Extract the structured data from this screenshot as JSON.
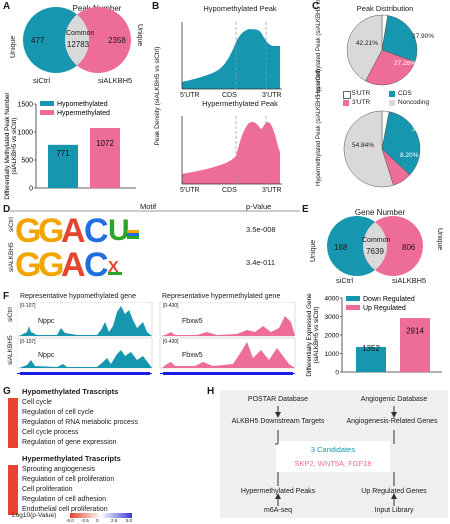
{
  "colors": {
    "teal": "#1796b0",
    "pink": "#ee6d97",
    "grey": "#d9d9d9",
    "red": "#e5452f"
  },
  "panel_labels": {
    "a": "A",
    "b": "B",
    "c": "C",
    "d": "D",
    "e": "E",
    "f": "F",
    "g": "G",
    "h": "H"
  },
  "panel_a": {
    "title": "Peak Number",
    "left_side": "Unique",
    "right_side": "Unique",
    "left_value": "477",
    "common_label": "Common",
    "common_value": "12783",
    "right_value": "2358",
    "left_group": "siCtrl",
    "right_group": "siALKBH5"
  },
  "panel_b": {
    "title_top": "Hypomethylated Peak",
    "title_bottom": "Hypermethylated Peak",
    "ylabel": "Peak Density (siALKBH5 vs siCtrl)",
    "x_ticks": [
      "5'UTR",
      "CDS",
      "3'UTR"
    ]
  },
  "panel_c": {
    "title": "Peak Distribution",
    "ylabel_top": "Hypomethylated Peak (siALKBH5 vs siCtrl)",
    "ylabel_bottom": "Hypermethylated Peak (siALKBH5 vs siCtrl)",
    "legend": [
      "5'UTR",
      "CDS",
      "3'UTR",
      "Noncoding"
    ],
    "top_labels": {
      "cds": "27.90%",
      "utr3": "27.26%",
      "nonc": "42.21%"
    },
    "bottom_labels": {
      "cds": "33.96%",
      "utr3": "8.20%",
      "nonc": "54.84%"
    }
  },
  "panel_d": {
    "col_motif": "Motif",
    "col_p": "p-Value",
    "rows": [
      {
        "name": "siCtrl",
        "p": "3.5e-008"
      },
      {
        "name": "siALKBH5",
        "p": "3.4e-011"
      }
    ]
  },
  "panel_e": {
    "title": "Gene Number",
    "left_side": "Unique",
    "right_side": "Unique",
    "left_value": "168",
    "common_label": "Common",
    "common_value": "7639",
    "right_value": "806",
    "left_group": "siCtrl",
    "right_group": "siALKBH5"
  },
  "panel_f": {
    "hypo_title": "Representative hypomethylated gene",
    "hyper_title": "Representative hypermethylated gene",
    "row_ctrl": "siCtrl",
    "row_kd": "siALKBH5",
    "gene_left": "Nppc",
    "gene_right": "Fbxw5",
    "scale_left": "[0-107]",
    "scale_right": "[0-430]"
  },
  "panel_g": {
    "hypo_heading": "Hypomethylated Trascripts",
    "hypo_terms": [
      "Cell cycle",
      "Regulation of cell cycle",
      "Regulation of RNA metabolic process",
      "Cell cycle process",
      "Regulation of gene expression"
    ],
    "hyper_heading": "Hypermethylated Trascripts",
    "hyper_terms": [
      "Sprouting angiogenesis",
      "Regulation of cell proliferation",
      "Cell proliferation",
      "Regulation of cell adhesion",
      "Endothelial cell proliferation"
    ],
    "scale_label": "Log10(p-Value)",
    "scale_ticks": [
      "-5.0",
      "-2.5",
      "0",
      "2.5",
      "5.0"
    ]
  },
  "panel_h": {
    "box1_a": "POSTAR Database",
    "box1_b": "ALKBH5 Downstream Targets",
    "box2_a": "Angiogenic Database",
    "box2_b": "Angiogenesis-Related Genes",
    "center_a": "3 Candidates",
    "center_b": "SKP2, WNT5A, FGF18",
    "box3_a": "Hypermethylated Peaks",
    "box3_b": "m6A-seq",
    "box4_a": "Up Regulated Genes",
    "box4_b": "Input Library"
  },
  "chart_data": [
    {
      "type": "bar",
      "ylabel": "Differentially Methylated Peak Number (siALKBH5 vs siCtrl)",
      "series": [
        {
          "name": "Hypomethylated",
          "values": [
            771
          ]
        },
        {
          "name": "Hypermethylated",
          "values": [
            1072
          ]
        }
      ],
      "ylim": [
        0,
        1500
      ],
      "y_ticks": [
        "0",
        "500",
        "1000",
        "1500"
      ],
      "legend": "top-left"
    },
    {
      "type": "pie",
      "slices": [
        {
          "name": "5'UTR",
          "value": 2.63
        },
        {
          "name": "CDS",
          "value": 27.9
        },
        {
          "name": "3'UTR",
          "value": 27.26
        },
        {
          "name": "Noncoding",
          "value": 42.21
        }
      ]
    },
    {
      "type": "pie",
      "slices": [
        {
          "name": "5'UTR",
          "value": 3.0
        },
        {
          "name": "CDS",
          "value": 33.96
        },
        {
          "name": "3'UTR",
          "value": 8.2
        },
        {
          "name": "Noncoding",
          "value": 54.84
        }
      ]
    },
    {
      "type": "bar",
      "ylabel": "Differentially Expressed Gene (siALKBH5 vs siCtrl)",
      "series": [
        {
          "name": "Down Regulated",
          "values": [
            1352
          ]
        },
        {
          "name": "Up Regulated",
          "values": [
            2914
          ]
        }
      ],
      "ylim": [
        0,
        4000
      ],
      "y_ticks": [
        "0",
        "1000",
        "2000",
        "3000",
        "4000"
      ],
      "legend": "top-left"
    },
    {
      "type": "heatmap",
      "rows": [
        "Cell cycle",
        "Regulation of cell cycle",
        "Regulation of RNA metabolic process",
        "Cell cycle process",
        "Regulation of gene expression",
        "Sprouting angiogenesis",
        "Regulation of cell proliferation",
        "Cell proliferation",
        "Regulation of cell adhesion",
        "Endothelial cell proliferation"
      ],
      "values": [
        -5,
        -5,
        -5,
        -5,
        -5,
        5,
        5,
        5,
        5,
        5
      ],
      "range": [
        -5,
        5
      ]
    }
  ]
}
